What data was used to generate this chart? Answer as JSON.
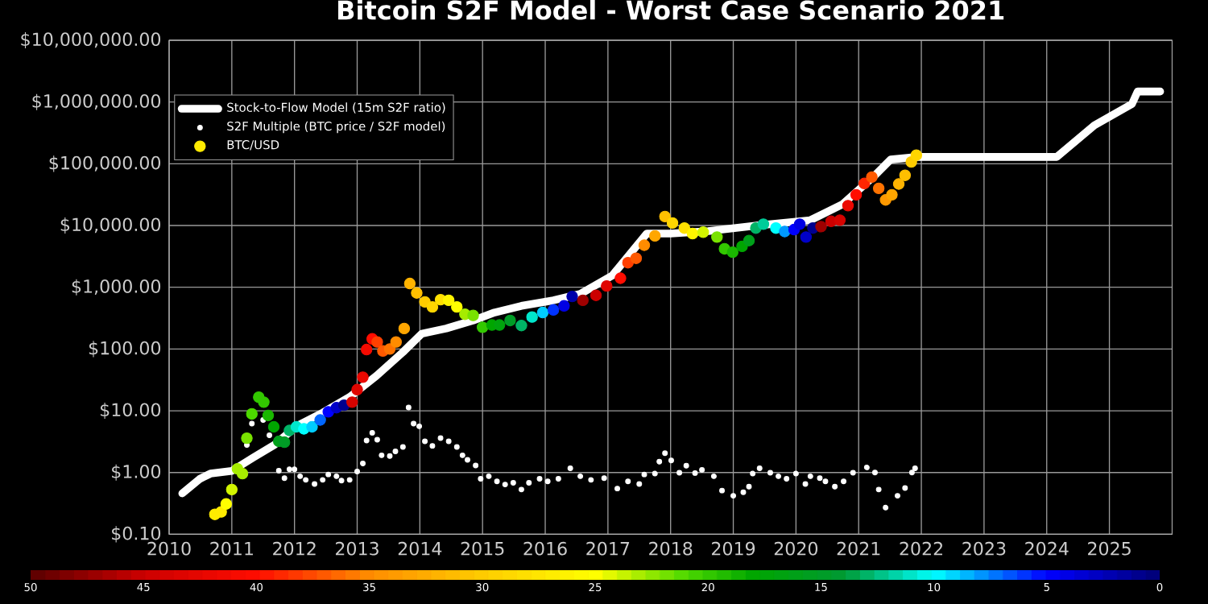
{
  "chart_data": {
    "type": "line",
    "title": "Bitcoin S2F Model - Worst Case Scenario 2021",
    "log": "y",
    "grid": true,
    "legend": "top left",
    "xlim": [
      2010,
      2026
    ],
    "xticks": [
      2010,
      2011,
      2012,
      2013,
      2014,
      2015,
      2016,
      2017,
      2018,
      2019,
      2020,
      2021,
      2022,
      2023,
      2024,
      2025
    ],
    "ylim": [
      0.1,
      10000000
    ],
    "yticks": [
      {
        "value": 0.1,
        "label": "$0.10"
      },
      {
        "value": 1,
        "label": "$1.00"
      },
      {
        "value": 10,
        "label": "$10.00"
      },
      {
        "value": 100,
        "label": "$100.00"
      },
      {
        "value": 1000,
        "label": "$1,000.00"
      },
      {
        "value": 10000,
        "label": "$10,000.00"
      },
      {
        "value": 100000,
        "label": "$100,000.00"
      },
      {
        "value": 1000000,
        "label": "$1,000,000.00"
      },
      {
        "value": 10000000,
        "label": "$10,000,000.00"
      }
    ],
    "clim": [
      50,
      0
    ],
    "cticks": [
      50,
      45,
      40,
      35,
      30,
      25,
      20,
      15,
      10,
      5,
      0
    ],
    "series": [
      {
        "name": "Stock-to-Flow Model (15m S2F ratio)",
        "color": "#ffffff",
        "marker": "none",
        "line_style": "solid",
        "x": [
          2010.21,
          2010.49,
          2010.66,
          2011.0,
          2011.34,
          2011.68,
          2012.03,
          2012.45,
          2012.88,
          2013.31,
          2013.73,
          2014.03,
          2014.42,
          2014.85,
          2015.19,
          2015.62,
          2016.13,
          2016.56,
          2017.07,
          2017.62,
          2018.0,
          2018.6,
          2019.38,
          2020.23,
          2020.74,
          2021.26,
          2021.51,
          2021.94,
          2024.16,
          2024.76,
          2025.36,
          2025.45,
          2025.81
        ],
        "values": [
          0.46,
          0.79,
          0.96,
          1.06,
          1.74,
          2.8,
          5.6,
          9.3,
          16.7,
          37,
          89,
          177,
          215,
          290,
          390,
          500,
          615,
          780,
          1550,
          7400,
          7400,
          8100,
          10000,
          12200,
          22000,
          65000,
          117000,
          129000,
          129000,
          420000,
          930000,
          1480000,
          1480000
        ]
      },
      {
        "name": "S2F Multiple (BTC price / S2F model)",
        "type": "scatter",
        "color": "#ffffff",
        "marker": "circle",
        "x": [
          2011.24,
          2011.32,
          2011.5,
          2011.6,
          2011.75,
          2011.84,
          2011.92,
          2012.0,
          2012.09,
          2012.18,
          2012.32,
          2012.45,
          2012.54,
          2012.67,
          2012.75,
          2012.88,
          2013.0,
          2013.09,
          2013.15,
          2013.24,
          2013.32,
          2013.39,
          2013.52,
          2013.61,
          2013.73,
          2013.82,
          2013.9,
          2013.99,
          2014.08,
          2014.2,
          2014.33,
          2014.46,
          2014.59,
          2014.68,
          2014.76,
          2014.89,
          2014.97,
          2015.1,
          2015.23,
          2015.36,
          2015.49,
          2015.62,
          2015.74,
          2015.91,
          2016.04,
          2016.21,
          2016.4,
          2016.56,
          2016.73,
          2016.94,
          2017.15,
          2017.32,
          2017.5,
          2017.58,
          2017.75,
          2017.82,
          2017.91,
          2018.01,
          2018.14,
          2018.25,
          2018.39,
          2018.5,
          2018.69,
          2018.82,
          2019.0,
          2019.16,
          2019.25,
          2019.31,
          2019.42,
          2019.59,
          2019.72,
          2019.85,
          2020.0,
          2020.15,
          2020.23,
          2020.38,
          2020.47,
          2020.62,
          2020.76,
          2020.91,
          2021.13,
          2021.26,
          2021.32,
          2021.43,
          2021.62,
          2021.74,
          2021.85,
          2021.9
        ],
        "values": [
          2.8,
          6.2,
          7.1,
          4.0,
          1.07,
          0.81,
          1.13,
          1.13,
          0.87,
          0.76,
          0.65,
          0.76,
          0.93,
          0.87,
          0.74,
          0.76,
          1.04,
          1.4,
          3.3,
          4.4,
          3.4,
          1.9,
          1.85,
          2.2,
          2.6,
          11.3,
          6.2,
          5.6,
          3.2,
          2.7,
          3.6,
          3.2,
          2.6,
          1.9,
          1.6,
          1.3,
          0.79,
          0.87,
          0.72,
          0.64,
          0.68,
          0.53,
          0.68,
          0.79,
          0.72,
          0.79,
          1.17,
          0.87,
          0.76,
          0.81,
          0.55,
          0.72,
          0.65,
          0.93,
          0.96,
          1.5,
          2.05,
          1.57,
          0.99,
          1.29,
          0.98,
          1.1,
          0.87,
          0.51,
          0.42,
          0.48,
          0.59,
          0.96,
          1.17,
          0.99,
          0.87,
          0.79,
          0.96,
          0.65,
          0.87,
          0.81,
          0.72,
          0.59,
          0.72,
          0.99,
          1.21,
          1.0,
          0.53,
          0.27,
          0.42,
          0.56,
          1.0,
          1.17
        ]
      },
      {
        "name": "BTC/USD",
        "type": "scatter",
        "marker": "circle",
        "x": [
          2010.73,
          2010.83,
          2010.91,
          2011.0,
          2011.09,
          2011.17,
          2011.24,
          2011.32,
          2011.43,
          2011.51,
          2011.58,
          2011.67,
          2011.75,
          2011.84,
          2011.92,
          2012.03,
          2012.15,
          2012.28,
          2012.41,
          2012.54,
          2012.67,
          2012.79,
          2012.92,
          2013.0,
          2013.09,
          2013.15,
          2013.24,
          2013.32,
          2013.41,
          2013.52,
          2013.62,
          2013.75,
          2013.84,
          2013.95,
          2014.08,
          2014.2,
          2014.33,
          2014.46,
          2014.59,
          2014.72,
          2014.85,
          2015.0,
          2015.15,
          2015.27,
          2015.44,
          2015.62,
          2015.79,
          2015.96,
          2016.13,
          2016.3,
          2016.43,
          2016.6,
          2016.81,
          2016.98,
          2017.2,
          2017.32,
          2017.45,
          2017.58,
          2017.75,
          2017.91,
          2018.03,
          2018.22,
          2018.35,
          2018.52,
          2018.74,
          2018.86,
          2018.99,
          2019.14,
          2019.25,
          2019.36,
          2019.48,
          2019.68,
          2019.82,
          2019.97,
          2020.06,
          2020.16,
          2020.27,
          2020.4,
          2020.56,
          2020.7,
          2020.83,
          2020.96,
          2021.09,
          2021.21,
          2021.32,
          2021.43,
          2021.53,
          2021.64,
          2021.74,
          2021.84,
          2021.92
        ],
        "values": [
          0.21,
          0.23,
          0.31,
          0.53,
          1.15,
          0.96,
          3.6,
          8.9,
          16.6,
          13.8,
          8.4,
          5.5,
          3.2,
          3.1,
          4.8,
          5.5,
          5.1,
          5.5,
          7.1,
          9.6,
          11.2,
          12.3,
          13.8,
          22,
          35,
          98,
          146,
          130,
          93,
          100,
          130,
          215,
          1150,
          810,
          580,
          480,
          630,
          615,
          480,
          365,
          350,
          225,
          245,
          245,
          290,
          240,
          330,
          390,
          430,
          500,
          710,
          615,
          740,
          1050,
          1400,
          2500,
          2950,
          4800,
          6800,
          14000,
          11000,
          9100,
          7400,
          7800,
          6500,
          4200,
          3700,
          4600,
          5700,
          9100,
          10500,
          9100,
          8000,
          8600,
          10500,
          6500,
          9100,
          9600,
          11700,
          12200,
          21000,
          31500,
          48000,
          61000,
          40000,
          26000,
          31500,
          47000,
          65000,
          107000,
          138000
        ],
        "colors": [
          "#ffeb00",
          "#ffeb00",
          "#ffff00",
          "#d2f500",
          "#a6ec00",
          "#a6ec00",
          "#79e200",
          "#4dd900",
          "#33c800",
          "#33c800",
          "#1ab700",
          "#00a600",
          "#00a01a",
          "#009c26",
          "#00b366",
          "#00e6cc",
          "#00ffff",
          "#00ccff",
          "#0066ff",
          "#0000ff",
          "#0000c7",
          "#00008f",
          "#d60300",
          "#e00500",
          "#eb0800",
          "#f50a00",
          "#ff0d00",
          "#ff4000",
          "#ff5900",
          "#ff7300",
          "#ff8c00",
          "#ffa600",
          "#ffb300",
          "#ffbf00",
          "#ffcc00",
          "#ffd600",
          "#ffe000",
          "#fff500",
          "#ffff00",
          "#a6ec00",
          "#79e200",
          "#33c800",
          "#00a600",
          "#00a30d",
          "#009c26",
          "#00b366",
          "#00e6cc",
          "#00ccff",
          "#0033ff",
          "#0000e3",
          "#0000ab",
          "#9e0000",
          "#cc0000",
          "#e00500",
          "#ff0d00",
          "#ff4000",
          "#ff5900",
          "#ff8c00",
          "#ffa600",
          "#ffbf00",
          "#ffd600",
          "#ffe000",
          "#fff500",
          "#d2f500",
          "#79e200",
          "#33c800",
          "#1ab700",
          "#00a600",
          "#00a01a",
          "#00b366",
          "#00cc99",
          "#00ffff",
          "#0099ff",
          "#0000ff",
          "#0000e3",
          "#0000c7",
          "#00008f",
          "#9e0000",
          "#cc0000",
          "#d60300",
          "#eb0800",
          "#ff0d00",
          "#ff2600",
          "#ff5900",
          "#ff7300",
          "#ff9900",
          "#ffa600",
          "#ffb300",
          "#ffbf00",
          "#ffcc00",
          "#ffd600"
        ]
      }
    ]
  }
}
